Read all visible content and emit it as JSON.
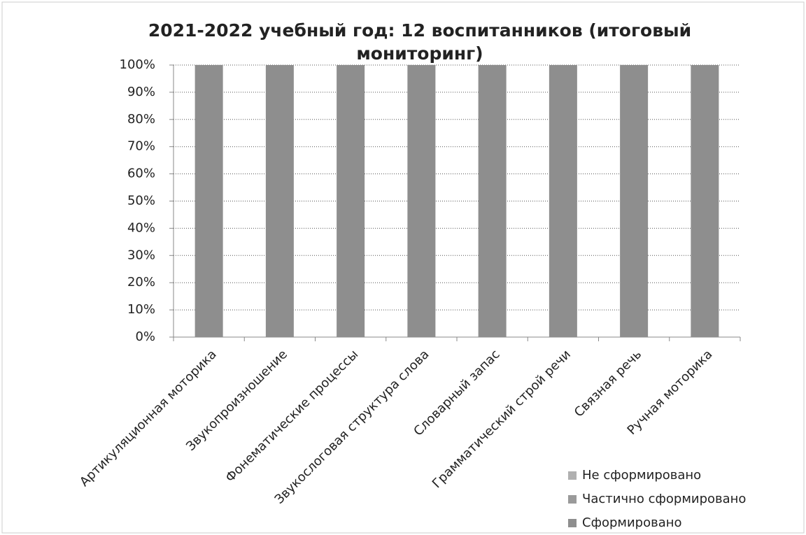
{
  "chart_data": {
    "type": "stacked_bar",
    "title": "2021-2022 учебный год: 12 воспитанников (итоговый мониторинг)",
    "categories": [
      "Артикуляционная моторика",
      "Звукопроизношение",
      "Фонематические процессы",
      "Звукослоговая структура слова",
      "Словарный запас",
      "Грамматический строй речи",
      "Связная речь",
      "Ручная моторика"
    ],
    "series": [
      {
        "name": "Сформировано",
        "color": "#8e8e8e",
        "values": [
          100,
          100,
          100,
          100,
          100,
          100,
          100,
          100
        ]
      },
      {
        "name": "Частично сформировано",
        "color": "#9a9a9a",
        "values": [
          0,
          0,
          0,
          0,
          0,
          0,
          0,
          0
        ]
      },
      {
        "name": "Не сформировано",
        "color": "#b0b0b0",
        "values": [
          0,
          0,
          0,
          0,
          0,
          0,
          0,
          0
        ]
      }
    ],
    "ylim": [
      0,
      100
    ],
    "yticks": [
      {
        "value": 0,
        "label": "0%"
      },
      {
        "value": 10,
        "label": "10%"
      },
      {
        "value": 20,
        "label": "20%"
      },
      {
        "value": 30,
        "label": "30%"
      },
      {
        "value": 40,
        "label": "40%"
      },
      {
        "value": 50,
        "label": "50%"
      },
      {
        "value": 60,
        "label": "60%"
      },
      {
        "value": 70,
        "label": "70%"
      },
      {
        "value": 80,
        "label": "80%"
      },
      {
        "value": 90,
        "label": "90%"
      },
      {
        "value": 100,
        "label": "100%"
      }
    ],
    "grid": true,
    "legend": "bottom-right"
  }
}
